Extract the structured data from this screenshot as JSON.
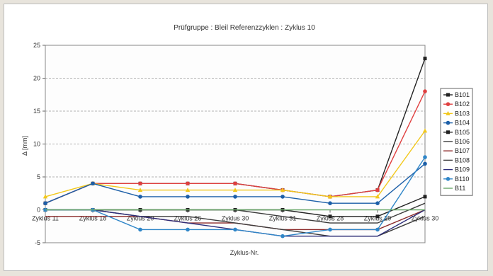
{
  "chart_data": {
    "type": "line",
    "title": "Prüfgruppe : Bleil     Referenzzyklen : Zyklus 10",
    "xlabel": "Zyklus-Nr.",
    "ylabel": "Δ [mm]",
    "ylim": [
      -5,
      25
    ],
    "yticks": [
      -5,
      0,
      5,
      10,
      15,
      20,
      25
    ],
    "grid": true,
    "legend": "right",
    "categories": [
      "Zyklus 11",
      "Zyklus 18",
      "Zyklus 20",
      "Zyklus 26",
      "Zyklus 30",
      "Zyklus 31",
      "Zyklus 28",
      "Zyklus 29",
      "Zyklus 30"
    ],
    "series": [
      {
        "name": "B101",
        "color": "#222222",
        "marker": "square",
        "values": [
          1,
          4,
          4,
          4,
          4,
          3,
          2,
          3,
          23
        ]
      },
      {
        "name": "B102",
        "color": "#e04040",
        "marker": "circle",
        "values": [
          1,
          4,
          4,
          4,
          4,
          3,
          2,
          3,
          18
        ]
      },
      {
        "name": "B103",
        "color": "#f2c81c",
        "marker": "triangle",
        "values": [
          2,
          4,
          3,
          3,
          3,
          3,
          2,
          2,
          12
        ]
      },
      {
        "name": "B104",
        "color": "#1c5fa8",
        "marker": "circle",
        "values": [
          1,
          4,
          2,
          2,
          2,
          2,
          1,
          1,
          7
        ]
      },
      {
        "name": "B105",
        "color": "#222222",
        "marker": "square",
        "values": [
          0,
          0,
          0,
          0,
          0,
          0,
          -1,
          -1,
          2
        ]
      },
      {
        "name": "B106",
        "color": "#3a3a3a",
        "marker": "none",
        "values": [
          0,
          0,
          0,
          0,
          0,
          -1,
          -2,
          -2,
          1
        ]
      },
      {
        "name": "B107",
        "color": "#8c2a2a",
        "marker": "none",
        "values": [
          -1,
          -1,
          -1,
          -2,
          -2,
          -3,
          -3,
          -3,
          0
        ]
      },
      {
        "name": "B108",
        "color": "#3c3c3c",
        "marker": "none",
        "values": [
          0,
          0,
          -1,
          -1,
          -2,
          -3,
          -4,
          -4,
          -1
        ]
      },
      {
        "name": "B109",
        "color": "#2d2d7a",
        "marker": "none",
        "values": [
          0,
          0,
          -1,
          -2,
          -3,
          -4,
          -4,
          -4,
          0
        ]
      },
      {
        "name": "B110",
        "color": "#2f86c8",
        "marker": "circle",
        "values": [
          0,
          0,
          -3,
          -3,
          -3,
          -4,
          -3,
          -3,
          8
        ]
      },
      {
        "name": "B11",
        "color": "#6aa86a",
        "marker": "none",
        "values": [
          0,
          0,
          0,
          0,
          0,
          0,
          0,
          0,
          0
        ]
      }
    ]
  }
}
